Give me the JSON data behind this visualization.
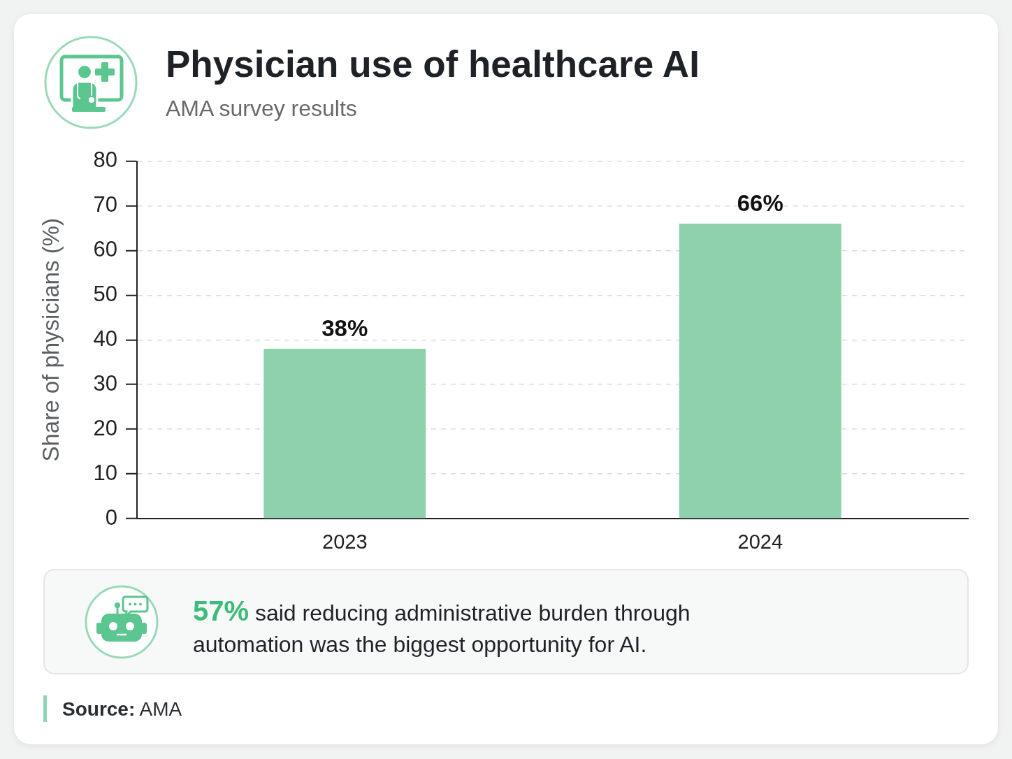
{
  "chart_data": {
    "type": "bar",
    "title": "Physician use of healthcare AI",
    "subtitle": "AMA survey results",
    "ylabel": "Share of physicians (%)",
    "categories": [
      "2023",
      "2024"
    ],
    "values": [
      38,
      66
    ],
    "color": "#8ed1ac",
    "value_labels": [
      "38%",
      "66%"
    ],
    "ylim": [
      0,
      80
    ],
    "yticks": [
      0,
      10,
      20,
      30,
      40,
      50,
      60,
      70,
      80
    ],
    "grid": "y",
    "annotations": [
      "57% said reducing administrative burden through automation was the biggest opportunity for AI.",
      "Source: AMA"
    ]
  }
}
